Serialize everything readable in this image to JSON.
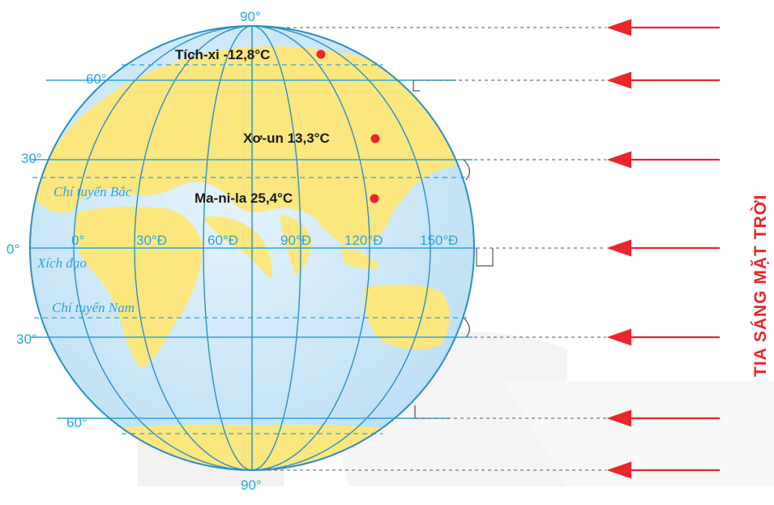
{
  "diagram": {
    "latitude_labels": {
      "north_pole": "90°",
      "lat_60n": "60°",
      "lat_30n": "30°",
      "equator": "0°",
      "lat_30s": "30°",
      "lat_60s": "60°",
      "south_pole": "90°"
    },
    "longitude_labels": [
      "0°",
      "30°Đ",
      "60°Đ",
      "90°Đ",
      "120°Đ",
      "150°Đ"
    ],
    "zones": {
      "tropic_north": "Chí tuyến Bắc",
      "equator": "Xích đạo",
      "tropic_south": "Chí tuyến Nam"
    },
    "cities": [
      {
        "label": "Tích-xi -12,8°C",
        "marker_color": "#e8262b"
      },
      {
        "label": "Xơ-un 13,3°C",
        "marker_color": "#e8262b"
      },
      {
        "label": "Ma-ni-la 25,4°C",
        "marker_color": "#e8262b"
      }
    ],
    "sun_rays_label": "TIA SÁNG MẶT TRỜI",
    "colors": {
      "ocean": "#cfe9f8",
      "land": "#fbe77e",
      "grid": "#2ea3dc",
      "ray": "#e8262b"
    }
  }
}
